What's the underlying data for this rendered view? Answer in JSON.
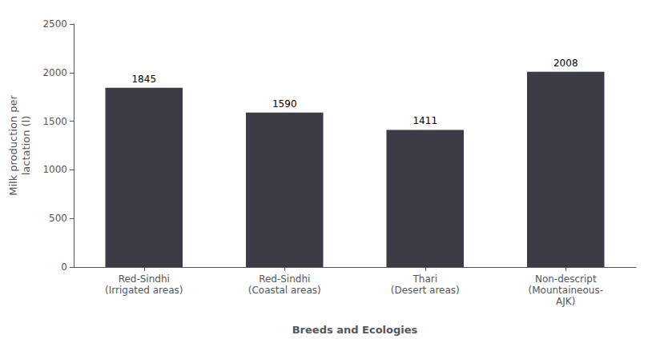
{
  "chart_data": {
    "type": "bar",
    "categories": [
      "Red-Sindhi\n(Irrigated areas)",
      "Red-Sindhi\n(Coastal areas)",
      "Thari\n(Desert areas)",
      "Non-descript\n(Mountaineous-\nAJK)"
    ],
    "values": [
      1845,
      1590,
      1411,
      2008
    ],
    "color": "#3a3d45",
    "xlabel": "Breeds and Ecologies",
    "ylabel": "Milk production per\nlactation (l)",
    "ylim": [
      0,
      2500
    ],
    "yticks": [
      0,
      500,
      1000,
      1500,
      2000,
      2500
    ],
    "grid": false,
    "data_labels": true
  }
}
